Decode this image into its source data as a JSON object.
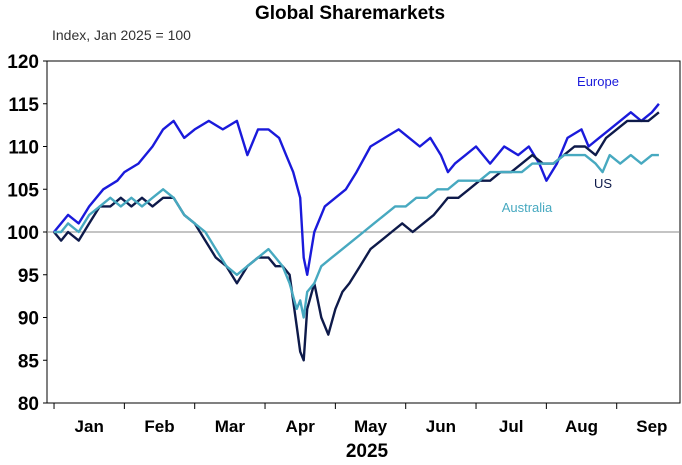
{
  "chart_data": {
    "type": "line",
    "title": "Global Sharemarkets",
    "subtitle": "Index, Jan 2025 = 100",
    "xlabel": "2025",
    "ylabel": "",
    "ylim": [
      80,
      120
    ],
    "yticks": [
      80,
      85,
      90,
      95,
      100,
      105,
      110,
      115,
      120
    ],
    "x_tick_labels": [
      "Jan",
      "Feb",
      "Mar",
      "Apr",
      "May",
      "Jun",
      "Jul",
      "Aug",
      "Sep"
    ],
    "reference_line": 100,
    "grid": false,
    "x_units": "months from start of 2025",
    "series": [
      {
        "name": "Europe",
        "color": "#1a1adb",
        "points": [
          [
            0.0,
            100
          ],
          [
            0.1,
            101
          ],
          [
            0.2,
            102
          ],
          [
            0.35,
            101
          ],
          [
            0.5,
            103
          ],
          [
            0.7,
            105
          ],
          [
            0.9,
            106
          ],
          [
            1.0,
            107
          ],
          [
            1.2,
            108
          ],
          [
            1.4,
            110
          ],
          [
            1.55,
            112
          ],
          [
            1.7,
            113
          ],
          [
            1.85,
            111
          ],
          [
            2.0,
            112
          ],
          [
            2.2,
            113
          ],
          [
            2.4,
            112
          ],
          [
            2.6,
            113
          ],
          [
            2.75,
            109
          ],
          [
            2.9,
            112
          ],
          [
            3.05,
            112
          ],
          [
            3.2,
            111
          ],
          [
            3.3,
            109
          ],
          [
            3.4,
            107
          ],
          [
            3.5,
            104
          ],
          [
            3.55,
            97
          ],
          [
            3.6,
            95
          ],
          [
            3.7,
            100
          ],
          [
            3.85,
            103
          ],
          [
            4.0,
            104
          ],
          [
            4.15,
            105
          ],
          [
            4.3,
            107
          ],
          [
            4.5,
            110
          ],
          [
            4.7,
            111
          ],
          [
            4.9,
            112
          ],
          [
            5.05,
            111
          ],
          [
            5.2,
            110
          ],
          [
            5.35,
            111
          ],
          [
            5.5,
            109
          ],
          [
            5.6,
            107
          ],
          [
            5.7,
            108
          ],
          [
            5.85,
            109
          ],
          [
            6.0,
            110
          ],
          [
            6.2,
            108
          ],
          [
            6.4,
            110
          ],
          [
            6.6,
            109
          ],
          [
            6.75,
            110
          ],
          [
            6.9,
            108
          ],
          [
            7.0,
            106
          ],
          [
            7.15,
            108
          ],
          [
            7.3,
            111
          ],
          [
            7.5,
            112
          ],
          [
            7.6,
            110
          ],
          [
            7.75,
            111
          ],
          [
            7.9,
            112
          ],
          [
            8.05,
            113
          ],
          [
            8.2,
            114
          ],
          [
            8.35,
            113
          ],
          [
            8.5,
            114
          ],
          [
            8.6,
            115
          ]
        ]
      },
      {
        "name": "US",
        "color": "#0e1a4a",
        "points": [
          [
            0.0,
            100
          ],
          [
            0.1,
            99
          ],
          [
            0.2,
            100
          ],
          [
            0.35,
            99
          ],
          [
            0.5,
            101
          ],
          [
            0.65,
            103
          ],
          [
            0.8,
            103
          ],
          [
            0.95,
            104
          ],
          [
            1.1,
            103
          ],
          [
            1.25,
            104
          ],
          [
            1.4,
            103
          ],
          [
            1.55,
            104
          ],
          [
            1.7,
            104
          ],
          [
            1.85,
            102
          ],
          [
            2.0,
            101
          ],
          [
            2.15,
            99
          ],
          [
            2.3,
            97
          ],
          [
            2.45,
            96
          ],
          [
            2.6,
            94
          ],
          [
            2.75,
            96
          ],
          [
            2.9,
            97
          ],
          [
            3.05,
            97
          ],
          [
            3.15,
            96
          ],
          [
            3.25,
            96
          ],
          [
            3.35,
            95
          ],
          [
            3.45,
            89
          ],
          [
            3.5,
            86
          ],
          [
            3.55,
            85
          ],
          [
            3.6,
            91
          ],
          [
            3.7,
            94
          ],
          [
            3.8,
            90
          ],
          [
            3.9,
            88
          ],
          [
            4.0,
            91
          ],
          [
            4.1,
            93
          ],
          [
            4.2,
            94
          ],
          [
            4.35,
            96
          ],
          [
            4.5,
            98
          ],
          [
            4.65,
            99
          ],
          [
            4.8,
            100
          ],
          [
            4.95,
            101
          ],
          [
            5.1,
            100
          ],
          [
            5.25,
            101
          ],
          [
            5.4,
            102
          ],
          [
            5.5,
            103
          ],
          [
            5.6,
            104
          ],
          [
            5.75,
            104
          ],
          [
            5.9,
            105
          ],
          [
            6.05,
            106
          ],
          [
            6.2,
            106
          ],
          [
            6.35,
            107
          ],
          [
            6.5,
            107
          ],
          [
            6.65,
            108
          ],
          [
            6.8,
            109
          ],
          [
            6.95,
            108
          ],
          [
            7.1,
            108
          ],
          [
            7.25,
            109
          ],
          [
            7.4,
            110
          ],
          [
            7.55,
            110
          ],
          [
            7.7,
            109
          ],
          [
            7.85,
            111
          ],
          [
            8.0,
            112
          ],
          [
            8.15,
            113
          ],
          [
            8.3,
            113
          ],
          [
            8.45,
            113
          ],
          [
            8.6,
            114
          ]
        ]
      },
      {
        "name": "Australia",
        "color": "#47a9c0",
        "points": [
          [
            0.0,
            100
          ],
          [
            0.1,
            100
          ],
          [
            0.2,
            101
          ],
          [
            0.35,
            100
          ],
          [
            0.5,
            102
          ],
          [
            0.65,
            103
          ],
          [
            0.8,
            104
          ],
          [
            0.95,
            103
          ],
          [
            1.1,
            104
          ],
          [
            1.25,
            103
          ],
          [
            1.4,
            104
          ],
          [
            1.55,
            105
          ],
          [
            1.7,
            104
          ],
          [
            1.85,
            102
          ],
          [
            2.0,
            101
          ],
          [
            2.15,
            100
          ],
          [
            2.3,
            98
          ],
          [
            2.45,
            96
          ],
          [
            2.6,
            95
          ],
          [
            2.75,
            96
          ],
          [
            2.9,
            97
          ],
          [
            3.05,
            98
          ],
          [
            3.15,
            97
          ],
          [
            3.25,
            96
          ],
          [
            3.35,
            94
          ],
          [
            3.45,
            91
          ],
          [
            3.5,
            92
          ],
          [
            3.55,
            90
          ],
          [
            3.6,
            93
          ],
          [
            3.7,
            94
          ],
          [
            3.8,
            96
          ],
          [
            3.95,
            97
          ],
          [
            4.1,
            98
          ],
          [
            4.25,
            99
          ],
          [
            4.4,
            100
          ],
          [
            4.55,
            101
          ],
          [
            4.7,
            102
          ],
          [
            4.85,
            103
          ],
          [
            5.0,
            103
          ],
          [
            5.15,
            104
          ],
          [
            5.3,
            104
          ],
          [
            5.45,
            105
          ],
          [
            5.6,
            105
          ],
          [
            5.75,
            106
          ],
          [
            5.9,
            106
          ],
          [
            6.05,
            106
          ],
          [
            6.2,
            107
          ],
          [
            6.35,
            107
          ],
          [
            6.5,
            107
          ],
          [
            6.65,
            107
          ],
          [
            6.8,
            108
          ],
          [
            6.95,
            108
          ],
          [
            7.1,
            108
          ],
          [
            7.25,
            109
          ],
          [
            7.4,
            109
          ],
          [
            7.55,
            109
          ],
          [
            7.7,
            108
          ],
          [
            7.8,
            107
          ],
          [
            7.9,
            109
          ],
          [
            8.05,
            108
          ],
          [
            8.2,
            109
          ],
          [
            8.35,
            108
          ],
          [
            8.5,
            109
          ],
          [
            8.6,
            109
          ]
        ]
      }
    ]
  }
}
